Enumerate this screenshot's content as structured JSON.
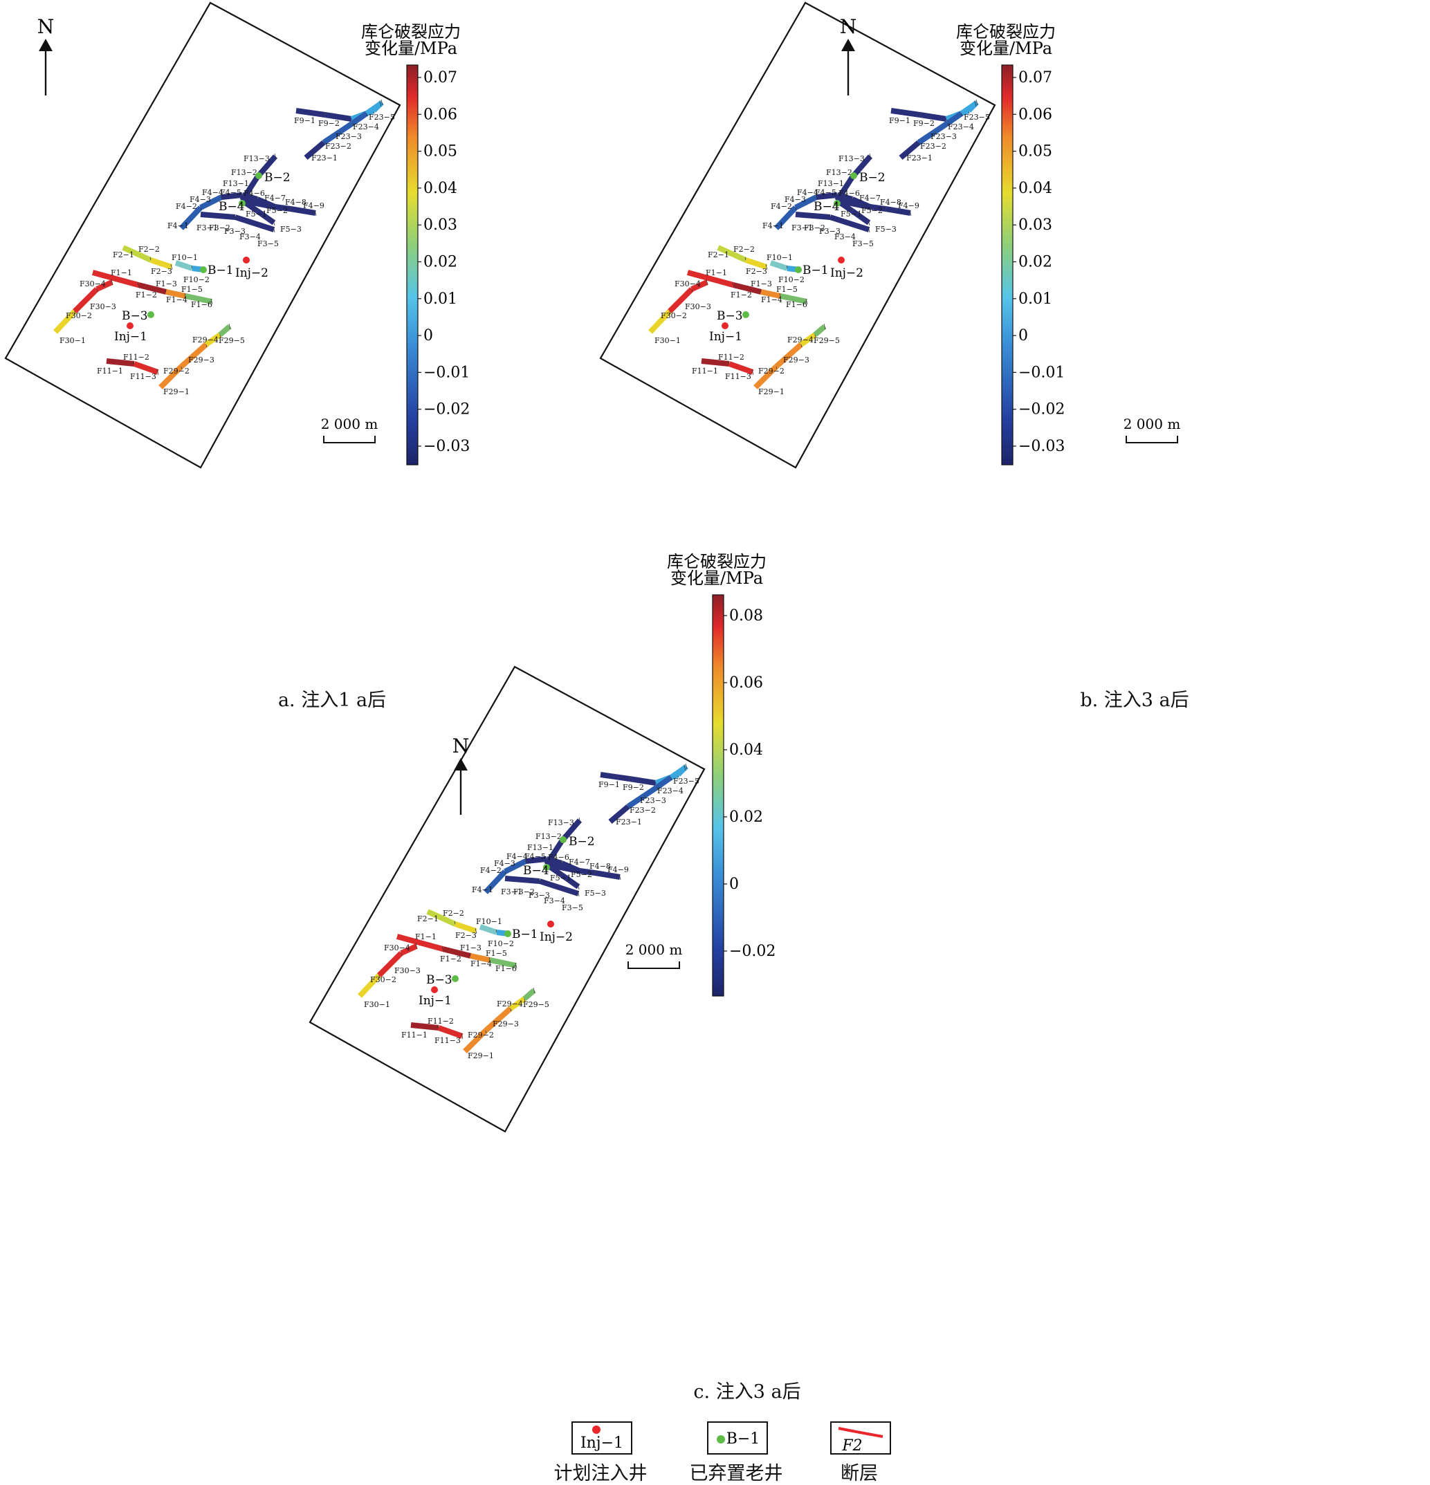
{
  "panels": [
    {
      "id": "a",
      "caption": "a.  注入1 a后",
      "north": "N",
      "colorbar_title": [
        "库仑破裂应力",
        "变化量/MPa"
      ],
      "colorbar_ticks": [
        "0.07",
        "0.06",
        "0.05",
        "0.04",
        "0.03",
        "0.02",
        "0.01",
        "0",
        "−0.01",
        "−0.02",
        "−0.03"
      ],
      "scale_bar": "2 000 m"
    },
    {
      "id": "b",
      "caption": "b.  注入3 a后",
      "north": "N",
      "colorbar_title": [
        "库仑破裂应力",
        "变化量/MPa"
      ],
      "colorbar_ticks": [
        "0.07",
        "0.06",
        "0.05",
        "0.04",
        "0.03",
        "0.02",
        "0.01",
        "0",
        "−0.01",
        "−0.02",
        "−0.03"
      ],
      "scale_bar": "2 000 m"
    },
    {
      "id": "c",
      "caption": "c.  注入3 a后",
      "north": "N",
      "colorbar_title": [
        "库仑破裂应力",
        "变化量/MPa"
      ],
      "colorbar_ticks": [
        "0.08",
        "0.06",
        "0.04",
        "0.02",
        "0",
        "−0.02"
      ],
      "scale_bar": "2 000 m"
    }
  ],
  "wells": {
    "injection": [
      "Inj−1",
      "Inj−2"
    ],
    "abandoned": [
      "B−1",
      "B−2",
      "B−3",
      "B−4"
    ]
  },
  "fault_labels": [
    "F9−1",
    "F9−2",
    "F23−1",
    "F23−2",
    "F23−3",
    "F23−4",
    "F23−5",
    "F13−1",
    "F13−2",
    "F13−3",
    "F4−1",
    "F4−2",
    "F4−3",
    "F4−4",
    "F4−5",
    "F4−6",
    "F4−7",
    "F4−8",
    "F4−9",
    "F3−1",
    "F3−2",
    "F3−3",
    "F3−4",
    "F3−5",
    "F5−1",
    "F5−2",
    "F5−3",
    "F2−1",
    "F2−2",
    "F2−3",
    "F10−1",
    "F10−2",
    "F1−1",
    "F1−2",
    "F1−3",
    "F1−4",
    "F1−5",
    "F1−6",
    "F30−1",
    "F30−2",
    "F30−3",
    "F30−4",
    "F11−1",
    "F11−2",
    "F11−3",
    "F29−1",
    "F29−2",
    "F29−3",
    "F29−4",
    "F29−5"
  ],
  "legend": {
    "injection_sample": "Inj−1",
    "injection_label": "计划注入井",
    "abandoned_sample": "B−1",
    "abandoned_label": "已弃置老井",
    "fault_sample": "F2",
    "fault_label": "断层"
  },
  "colors": {
    "injection_well": "#e8262b",
    "abandoned_well": "#5dbb46",
    "fault_legend": "#e8262b"
  }
}
